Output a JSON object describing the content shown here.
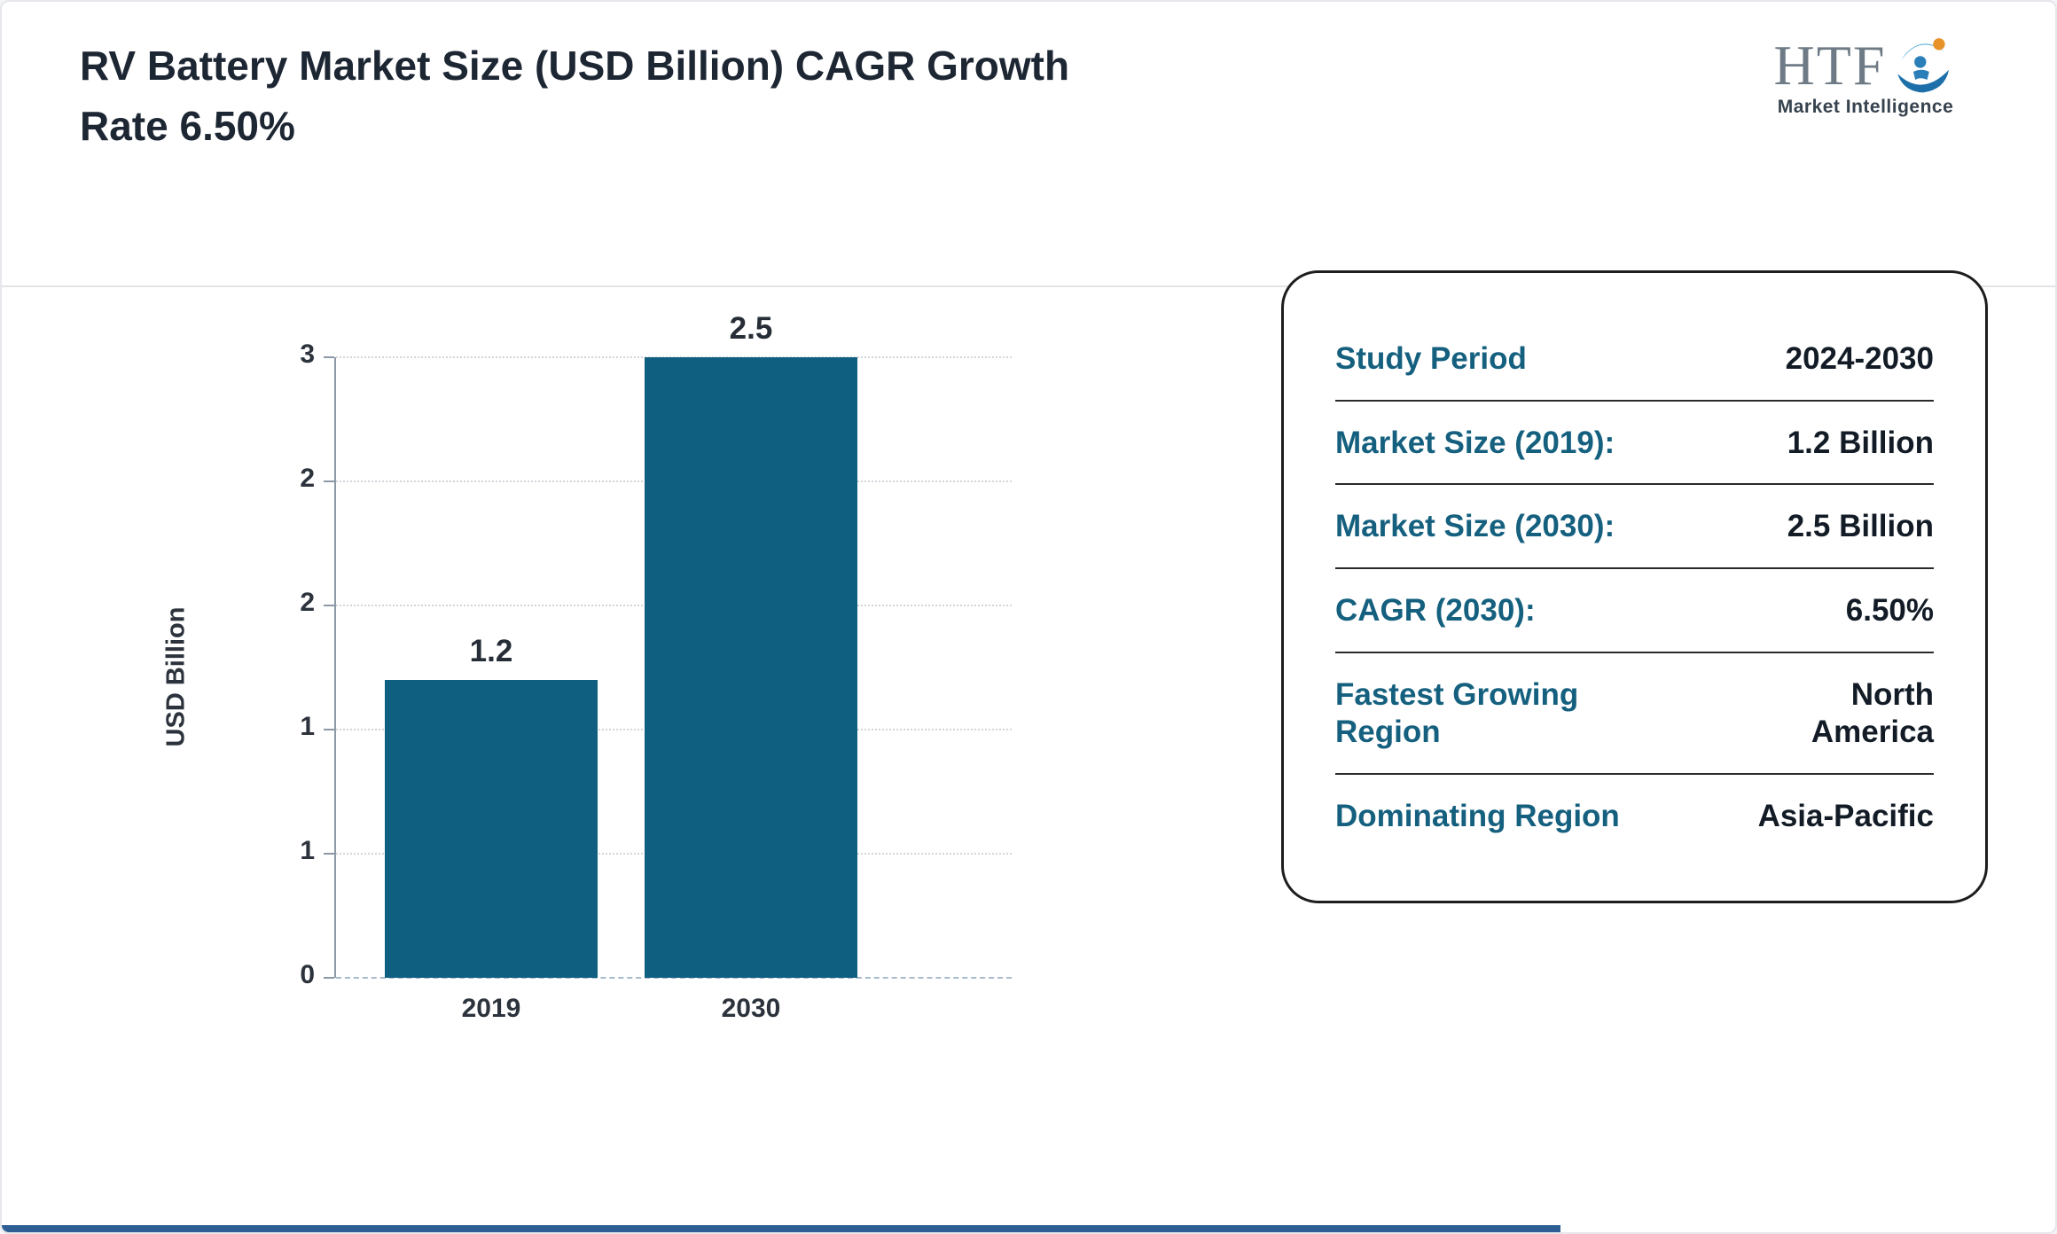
{
  "header": {
    "title": "RV Battery Market Size (USD Billion) CAGR Growth Rate 6.50%",
    "logo": {
      "text": "HTF",
      "subtext": "Market Intelligence"
    }
  },
  "chart_data": {
    "type": "bar",
    "title": "RV Battery Market Size (USD Billion) CAGR Growth Rate 6.50%",
    "categories": [
      "2019",
      "2030"
    ],
    "values": [
      1.2,
      2.5
    ],
    "value_labels": [
      "1.2",
      "2.5"
    ],
    "xlabel": "",
    "ylabel": "USD Billion",
    "ylim": [
      0,
      2.5
    ],
    "yticks": [
      0,
      0.5,
      1,
      1.5,
      2,
      2.5
    ],
    "ytick_labels": [
      "0",
      "1",
      "1",
      "2",
      "2",
      "3"
    ],
    "grid": true,
    "legend": "none",
    "bar_color": "#0e5f80"
  },
  "info_card": {
    "label_color": "#15607f",
    "value_color": "#131c26",
    "rows": [
      {
        "label": "Study Period",
        "value": "2024-2030"
      },
      {
        "label": "Market Size (2019):",
        "value": "1.2 Billion"
      },
      {
        "label": "Market Size (2030):",
        "value": "2.5 Billion"
      },
      {
        "label": "CAGR (2030):",
        "value": "6.50%"
      },
      {
        "label": "Fastest Growing Region",
        "value": "North America"
      },
      {
        "label": "Dominating Region",
        "value": "Asia-Pacific"
      }
    ]
  },
  "footer": {
    "accent_color": "#2e5f94"
  }
}
